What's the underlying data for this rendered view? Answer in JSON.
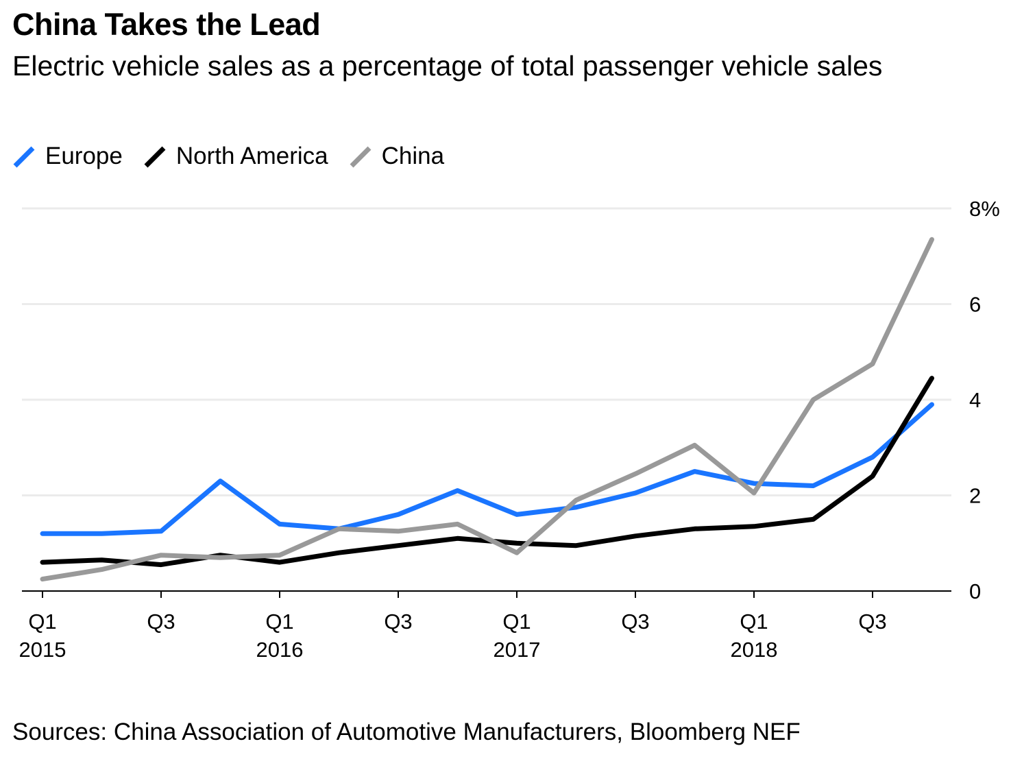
{
  "title": "China Takes the Lead",
  "subtitle": "Electric vehicle sales as a percentage of total passenger vehicle sales",
  "source": "Sources: China Association of Automotive Manufacturers, Bloomberg NEF",
  "chart_data": {
    "type": "line",
    "title": "China Takes the Lead",
    "subtitle": "Electric vehicle sales as a percentage of total passenger vehicle sales",
    "x": [
      "2015 Q1",
      "2015 Q2",
      "2015 Q3",
      "2015 Q4",
      "2016 Q1",
      "2016 Q2",
      "2016 Q3",
      "2016 Q4",
      "2017 Q1",
      "2017 Q2",
      "2017 Q3",
      "2017 Q4",
      "2018 Q1",
      "2018 Q2",
      "2018 Q3",
      "2018 Q4"
    ],
    "x_tick_labels": [
      {
        "index": 0,
        "line1": "Q1",
        "line2": "2015"
      },
      {
        "index": 2,
        "line1": "Q3",
        "line2": ""
      },
      {
        "index": 4,
        "line1": "Q1",
        "line2": "2016"
      },
      {
        "index": 6,
        "line1": "Q3",
        "line2": ""
      },
      {
        "index": 8,
        "line1": "Q1",
        "line2": "2017"
      },
      {
        "index": 10,
        "line1": "Q3",
        "line2": ""
      },
      {
        "index": 12,
        "line1": "Q1",
        "line2": "2018"
      },
      {
        "index": 14,
        "line1": "Q3",
        "line2": ""
      }
    ],
    "y_ticks": [
      {
        "value": 0,
        "label": "0"
      },
      {
        "value": 2,
        "label": "2"
      },
      {
        "value": 4,
        "label": "4"
      },
      {
        "value": 6,
        "label": "6"
      },
      {
        "value": 8,
        "label": "8%"
      }
    ],
    "ylim": [
      0,
      8
    ],
    "grid": true,
    "legend_position": "top-left",
    "series": [
      {
        "name": "Europe",
        "color": "#1a75ff",
        "values": [
          1.2,
          1.2,
          1.25,
          2.3,
          1.4,
          1.3,
          1.6,
          2.1,
          1.6,
          1.75,
          2.05,
          2.5,
          2.25,
          2.2,
          2.8,
          3.9
        ]
      },
      {
        "name": "North America",
        "color": "#000000",
        "values": [
          0.6,
          0.65,
          0.55,
          0.75,
          0.6,
          0.8,
          0.95,
          1.1,
          1.0,
          0.95,
          1.15,
          1.3,
          1.35,
          1.5,
          2.4,
          4.45
        ]
      },
      {
        "name": "China",
        "color": "#999999",
        "values": [
          0.25,
          0.45,
          0.75,
          0.7,
          0.75,
          1.3,
          1.25,
          1.4,
          0.8,
          1.9,
          2.45,
          3.05,
          2.05,
          4.0,
          4.75,
          7.35
        ]
      }
    ]
  }
}
